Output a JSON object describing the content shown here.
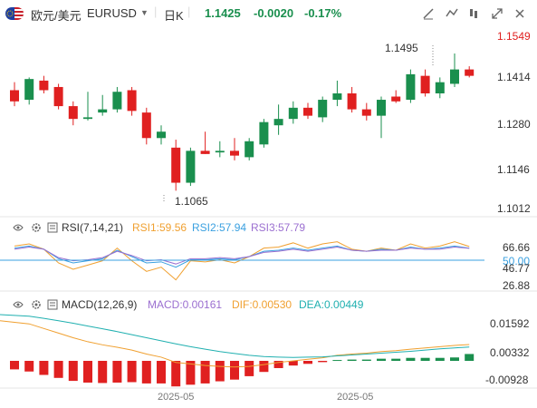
{
  "header": {
    "pair_cn": "欧元/美元",
    "symbol": "EURUSD",
    "dropdown_icon": "caret-down-icon",
    "period": "日K",
    "price": "1.1425",
    "change": "-0.0020",
    "change_pct": "-0.17%",
    "colors": {
      "up": "#1a8f4e",
      "down": "#e02020",
      "text": "#333333"
    },
    "tools": [
      "line-draw-icon",
      "indicator-icon",
      "drawing-tools-icon",
      "expand-icon",
      "close-icon"
    ]
  },
  "price_axis": {
    "labels": [
      "1.1549",
      "1.1414",
      "1.1280",
      "1.1146",
      "1.1012"
    ],
    "top_color": "#e02020"
  },
  "annotations": {
    "high": "1.1495",
    "low": "1.1065"
  },
  "rsi": {
    "title": "RSI(7,14,21)",
    "rsi1": "RSI1:59.56",
    "rsi2": "RSI2:57.94",
    "rsi3": "RSI3:57.79",
    "colors": {
      "rsi1": "#f0a030",
      "rsi2": "#3aa0e0",
      "rsi3": "#9b6fd0"
    },
    "axis": [
      "66.66",
      "50.00",
      "46.77",
      "26.88"
    ]
  },
  "macd": {
    "title": "MACD(12,26,9)",
    "macd": "MACD:0.00161",
    "dif": "DIF:0.00530",
    "dea": "DEA:0.00449",
    "colors": {
      "macd": "#9b6fd0",
      "dif": "#f0a030",
      "dea": "#20b0b0"
    },
    "axis": [
      "0.01592",
      "0.00332",
      "-0.00928"
    ]
  },
  "dates": [
    "2025-05",
    "2025-05"
  ],
  "chart_data": {
    "type": "candlestick",
    "y_range": [
      1.1012,
      1.1549
    ],
    "candles": [
      {
        "o": 1.138,
        "h": 1.1405,
        "l": 1.133,
        "c": 1.1345
      },
      {
        "o": 1.135,
        "h": 1.142,
        "l": 1.1335,
        "c": 1.1415
      },
      {
        "o": 1.141,
        "h": 1.1425,
        "l": 1.137,
        "c": 1.138
      },
      {
        "o": 1.139,
        "h": 1.14,
        "l": 1.132,
        "c": 1.133
      },
      {
        "o": 1.133,
        "h": 1.1345,
        "l": 1.127,
        "c": 1.129
      },
      {
        "o": 1.129,
        "h": 1.1375,
        "l": 1.1285,
        "c": 1.1295
      },
      {
        "o": 1.131,
        "h": 1.1365,
        "l": 1.13,
        "c": 1.132
      },
      {
        "o": 1.132,
        "h": 1.139,
        "l": 1.131,
        "c": 1.1375
      },
      {
        "o": 1.138,
        "h": 1.139,
        "l": 1.13,
        "c": 1.1315
      },
      {
        "o": 1.131,
        "h": 1.1325,
        "l": 1.121,
        "c": 1.123
      },
      {
        "o": 1.123,
        "h": 1.127,
        "l": 1.121,
        "c": 1.125
      },
      {
        "o": 1.12,
        "h": 1.1225,
        "l": 1.1065,
        "c": 1.109
      },
      {
        "o": 1.109,
        "h": 1.12,
        "l": 1.108,
        "c": 1.119
      },
      {
        "o": 1.119,
        "h": 1.125,
        "l": 1.118,
        "c": 1.118
      },
      {
        "o": 1.1185,
        "h": 1.122,
        "l": 1.117,
        "c": 1.119
      },
      {
        "o": 1.119,
        "h": 1.123,
        "l": 1.116,
        "c": 1.1175
      },
      {
        "o": 1.117,
        "h": 1.123,
        "l": 1.116,
        "c": 1.122
      },
      {
        "o": 1.121,
        "h": 1.129,
        "l": 1.12,
        "c": 1.128
      },
      {
        "o": 1.127,
        "h": 1.1335,
        "l": 1.124,
        "c": 1.129
      },
      {
        "o": 1.129,
        "h": 1.1345,
        "l": 1.1275,
        "c": 1.1325
      },
      {
        "o": 1.1325,
        "h": 1.134,
        "l": 1.129,
        "c": 1.13
      },
      {
        "o": 1.1295,
        "h": 1.136,
        "l": 1.128,
        "c": 1.135
      },
      {
        "o": 1.135,
        "h": 1.141,
        "l": 1.133,
        "c": 1.137
      },
      {
        "o": 1.137,
        "h": 1.139,
        "l": 1.131,
        "c": 1.132
      },
      {
        "o": 1.132,
        "h": 1.134,
        "l": 1.1285,
        "c": 1.13
      },
      {
        "o": 1.13,
        "h": 1.136,
        "l": 1.123,
        "c": 1.135
      },
      {
        "o": 1.136,
        "h": 1.138,
        "l": 1.134,
        "c": 1.1345
      },
      {
        "o": 1.135,
        "h": 1.1445,
        "l": 1.134,
        "c": 1.143
      },
      {
        "o": 1.1425,
        "h": 1.1445,
        "l": 1.136,
        "c": 1.137
      },
      {
        "o": 1.137,
        "h": 1.142,
        "l": 1.1355,
        "c": 1.1405
      },
      {
        "o": 1.14,
        "h": 1.1495,
        "l": 1.139,
        "c": 1.1445
      },
      {
        "o": 1.1445,
        "h": 1.1455,
        "l": 1.142,
        "c": 1.1425
      }
    ],
    "rsi1": [
      60,
      62,
      57,
      44,
      38,
      42,
      46,
      58,
      46,
      36,
      40,
      28,
      46,
      45,
      47,
      44,
      50,
      58,
      59,
      63,
      58,
      62,
      64,
      57,
      55,
      58,
      56,
      62,
      58,
      60,
      64,
      59.56
    ],
    "rsi2": [
      58,
      60,
      57,
      48,
      44,
      46,
      48,
      56,
      50,
      44,
      45,
      40,
      47,
      47,
      48,
      47,
      50,
      55,
      56,
      58,
      56,
      58,
      60,
      56,
      55,
      57,
      56,
      59,
      57,
      58,
      60,
      57.94
    ],
    "rsi3": [
      57,
      59,
      57,
      49,
      46,
      47,
      49,
      55,
      51,
      46,
      47,
      43,
      48,
      48,
      49,
      48,
      50,
      54,
      55,
      57,
      55,
      57,
      59,
      56,
      55,
      56,
      56,
      58,
      57,
      57,
      59,
      57.79
    ],
    "dif": [
      0.013,
      0.012,
      0.0105,
      0.009,
      0.0075,
      0.0062,
      0.0052,
      0.0044,
      0.0035,
      0.0022,
      0.0012,
      -0.0005,
      -0.001,
      -0.0015,
      -0.0018,
      -0.002,
      -0.0018,
      -0.0012,
      -0.0005,
      0.0,
      0.0005,
      0.001,
      0.0018,
      0.0022,
      0.0025,
      0.003,
      0.0033,
      0.0038,
      0.0042,
      0.0046,
      0.005,
      0.0053
    ],
    "dea": [
      0.015,
      0.0145,
      0.0138,
      0.013,
      0.0122,
      0.0113,
      0.0104,
      0.0095,
      0.0085,
      0.0075,
      0.0065,
      0.0055,
      0.0046,
      0.0038,
      0.003,
      0.0024,
      0.0018,
      0.0014,
      0.0012,
      0.0011,
      0.0012,
      0.0013,
      0.0016,
      0.0019,
      0.0022,
      0.0025,
      0.0028,
      0.0031,
      0.0035,
      0.0039,
      0.0042,
      0.00449
    ],
    "macd": [
      -0.002,
      -0.0025,
      -0.0033,
      -0.004,
      -0.0047,
      -0.0051,
      -0.0052,
      -0.0051,
      -0.005,
      -0.0053,
      -0.0053,
      -0.006,
      -0.0056,
      -0.0053,
      -0.0048,
      -0.0044,
      -0.0036,
      -0.0026,
      -0.0017,
      -0.0011,
      -0.0007,
      -0.0003,
      0.0002,
      0.0003,
      0.0003,
      0.0005,
      0.0005,
      0.0007,
      0.0007,
      0.0007,
      0.0008,
      0.00161
    ]
  }
}
